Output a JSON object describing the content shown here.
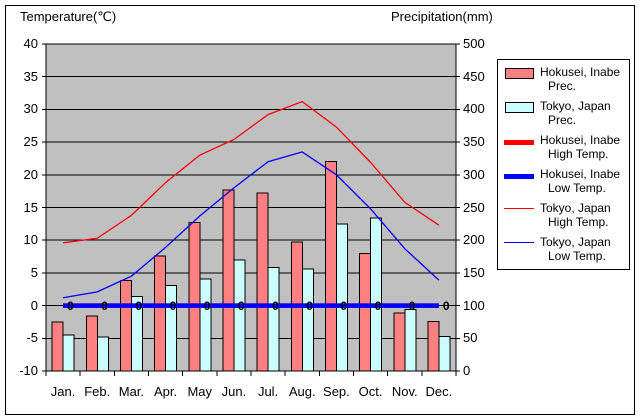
{
  "figure": {
    "temp_axis_title": "Temperature(℃)",
    "precip_axis_title": "Precipitation(mm)"
  },
  "chart_data": {
    "type": "combo-bar-line climate chart",
    "categories": [
      "Jan.",
      "Feb.",
      "Mar.",
      "Apr.",
      "May",
      "Jun.",
      "Jul.",
      "Aug.",
      "Sep.",
      "Oct.",
      "Nov.",
      "Dec."
    ],
    "temp_axis": {
      "title": "Temperature(℃)",
      "min": -10,
      "max": 40,
      "step": 5,
      "tick_labels": [
        "40",
        "35",
        "30",
        "25",
        "20",
        "15",
        "10",
        "5",
        "0",
        "-5",
        "-10"
      ]
    },
    "precip_axis": {
      "title": "Precipitation(mm)",
      "min": 0,
      "max": 500,
      "step": 50,
      "tick_labels": [
        "500",
        "450",
        "400",
        "350",
        "300",
        "250",
        "200",
        "150",
        "100",
        "50",
        "0"
      ]
    },
    "grid": true,
    "plot_bg_color": "#C0C0C0",
    "legend_position": "right",
    "series": [
      {
        "name": "Hokusei, Inabe Prec.",
        "legend_lines": [
          "Hokusei, Inabe",
          "Prec."
        ],
        "type": "bar",
        "axis": "precip",
        "color": "#FF8080",
        "values": [
          75,
          84,
          138,
          176,
          227,
          277,
          272,
          197,
          320,
          180,
          89,
          76
        ]
      },
      {
        "name": "Tokyo, Japan Prec.",
        "legend_lines": [
          "Tokyo, Japan",
          "Prec."
        ],
        "type": "bar",
        "axis": "precip",
        "color": "#CCFFFF",
        "values": [
          55,
          52,
          114,
          131,
          141,
          170,
          158,
          156,
          225,
          234,
          94,
          53
        ]
      },
      {
        "name": "Hokusei, Inabe High Temp.",
        "legend_lines": [
          "Hokusei, Inabe",
          "High Temp."
        ],
        "type": "line",
        "axis": "temp",
        "color": "#FF0000",
        "stroke_width": 4.5,
        "values": [
          0,
          0,
          0,
          0,
          0,
          0,
          0,
          0,
          0,
          0,
          0,
          0
        ]
      },
      {
        "name": "Hokusei, Inabe Low Temp.",
        "legend_lines": [
          "Hokusei, Inabe",
          "Low Temp."
        ],
        "type": "line",
        "axis": "temp",
        "color": "#0000FF",
        "stroke_width": 4.5,
        "show_data_labels": true,
        "values": [
          0,
          0,
          0,
          0,
          0,
          0,
          0,
          0,
          0,
          0,
          0,
          0
        ]
      },
      {
        "name": "Tokyo, Japan High Temp.",
        "legend_lines": [
          "Tokyo, Japan",
          "High Temp."
        ],
        "type": "line",
        "axis": "temp",
        "color": "#FF0000",
        "stroke_width": 1.3,
        "values": [
          9.6,
          10.3,
          13.8,
          18.8,
          23.0,
          25.4,
          29.2,
          31.2,
          27.3,
          21.9,
          15.8,
          12.3
        ]
      },
      {
        "name": "Tokyo, Japan Low Temp.",
        "legend_lines": [
          "Tokyo, Japan",
          "Low Temp."
        ],
        "type": "line",
        "axis": "temp",
        "color": "#0000FF",
        "stroke_width": 1.3,
        "values": [
          1.2,
          2.1,
          4.5,
          8.9,
          13.7,
          18.0,
          22.0,
          23.5,
          20.0,
          14.8,
          8.7,
          3.9
        ]
      }
    ]
  }
}
